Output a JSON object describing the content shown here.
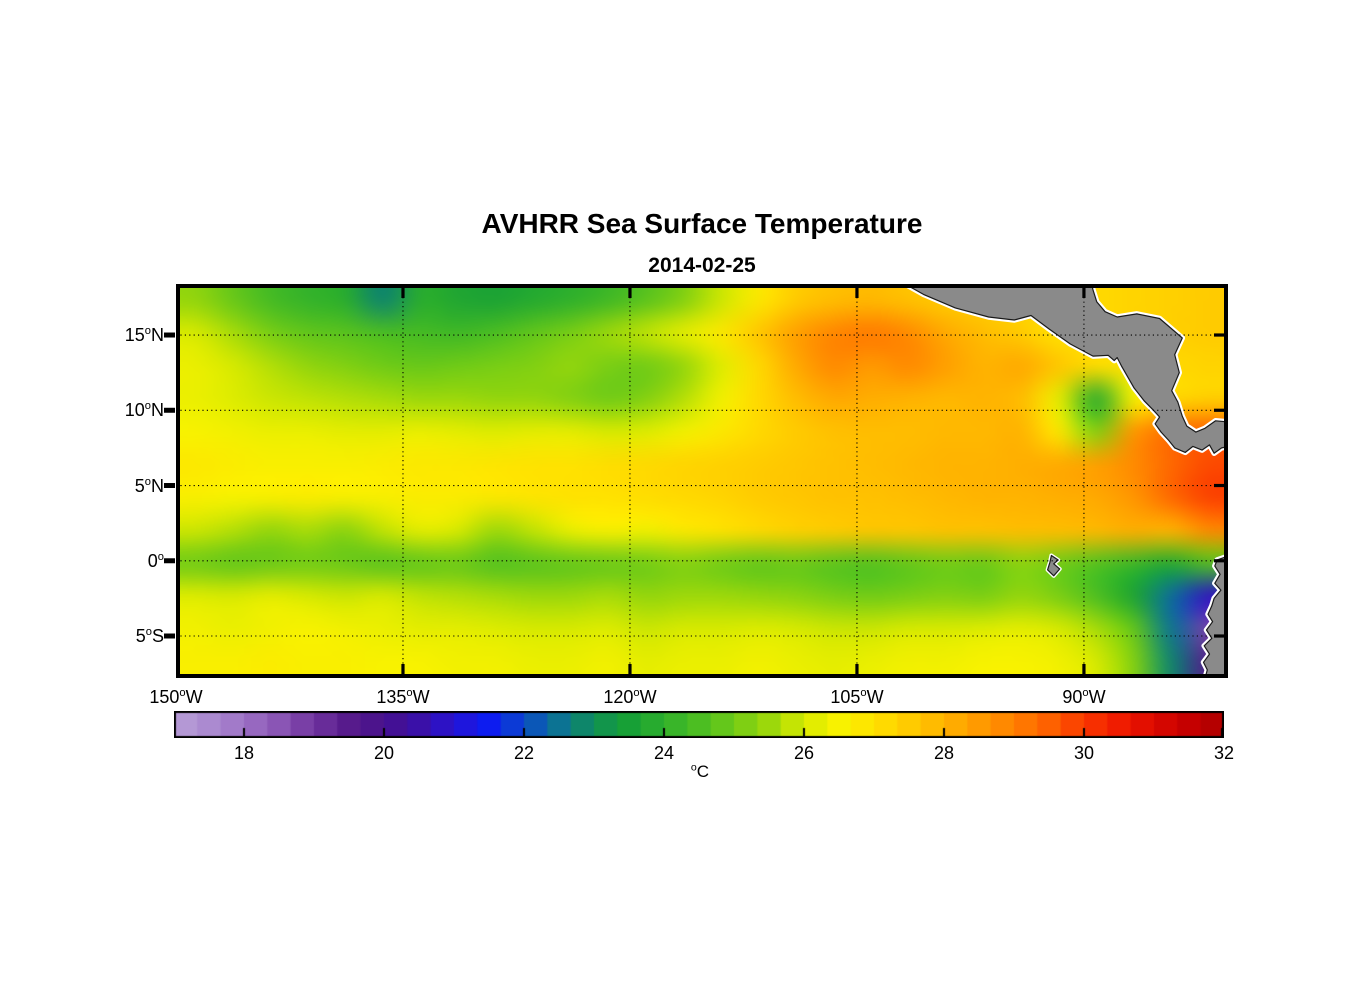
{
  "figure": {
    "title": "AVHRR Sea Surface Temperature",
    "subtitle": "2014-02-25"
  },
  "chart_data": {
    "type": "heatmap",
    "title": "AVHRR Sea Surface Temperature",
    "subtitle": "2014-02-25",
    "lon_range": [
      -150,
      -80.48
    ],
    "lat_range": [
      -7.79,
      18.39
    ],
    "grid_on": true,
    "x_ticks": [
      {
        "lon": -150,
        "label": "150°W"
      },
      {
        "lon": -135,
        "label": "135°W"
      },
      {
        "lon": -120,
        "label": "120°W"
      },
      {
        "lon": -105,
        "label": "105°W"
      },
      {
        "lon": -90,
        "label": "90°W"
      }
    ],
    "y_ticks": [
      {
        "lat": 15,
        "label": "15°N"
      },
      {
        "lat": 10,
        "label": "10°N"
      },
      {
        "lat": 5,
        "label": "5°N"
      },
      {
        "lat": 0,
        "label": "0°"
      },
      {
        "lat": -5,
        "label": "5°S"
      }
    ],
    "colorbar": {
      "label": "°C",
      "ticks": [
        18,
        20,
        22,
        24,
        26,
        28,
        30,
        32
      ],
      "range": [
        17,
        32
      ],
      "segments": 45,
      "orientation": "horizontal"
    },
    "colormap": {
      "start": 17,
      "step": 0.5,
      "colors": [
        "#b89fd8",
        "#ab8ad0",
        "#9d72c6",
        "#8a55b5",
        "#71349f",
        "#571b8c",
        "#47108c",
        "#3a10a8",
        "#2613d4",
        "#0d1cf0",
        "#0b49c9",
        "#0c7393",
        "#0f8f55",
        "#17a036",
        "#2fb02c",
        "#4cbe22",
        "#70cb17",
        "#9cd80b",
        "#d8ea00",
        "#f8f200",
        "#ffe200",
        "#ffcb00",
        "#ffb300",
        "#ff9a00",
        "#ff8000",
        "#fe6100",
        "#fa3900",
        "#f01c00",
        "#dc0900",
        "#c50000",
        "#ad0000"
      ]
    },
    "land_color": "#8a8a8a",
    "coast_halo_color": "#ffffff",
    "coast_line_color": "#1a1a1a",
    "frame_color": "#000000",
    "sst_grid": {
      "units": "°C",
      "cols": 28,
      "rows": 12,
      "lon_min": -150,
      "lon_max": -80.48,
      "lat_max": 18.39,
      "lat_min": -7.79,
      "values": [
        [
          25.4,
          24.9,
          24.4,
          24.1,
          23.9,
          22.8,
          23.9,
          23.7,
          23.6,
          23.8,
          24.0,
          24.3,
          24.7,
          25.2,
          25.9,
          26.8,
          27.5,
          27.8,
          27.9,
          27.7,
          27.5,
          27.4,
          27.3,
          27.2,
          27.2,
          27.3,
          27.4,
          27.5
        ],
        [
          26.0,
          25.6,
          25.1,
          24.8,
          24.7,
          24.5,
          24.4,
          24.3,
          24.5,
          24.8,
          25.1,
          25.5,
          25.8,
          26.2,
          26.8,
          27.6,
          28.4,
          28.9,
          29.1,
          28.8,
          28.2,
          27.8,
          27.5,
          27.0,
          27.2,
          27.3,
          27.4,
          27.5
        ],
        [
          26.3,
          26.0,
          25.7,
          25.4,
          25.2,
          25.0,
          24.9,
          25.0,
          25.1,
          25.2,
          25.4,
          25.1,
          25.0,
          25.4,
          26.1,
          27.2,
          28.2,
          28.8,
          28.5,
          28.8,
          28.4,
          28.0,
          28.2,
          27.6,
          27.1,
          27.0,
          27.2,
          27.3
        ],
        [
          26.3,
          26.1,
          25.9,
          25.8,
          25.7,
          25.6,
          25.5,
          25.5,
          25.4,
          25.4,
          25.2,
          25.0,
          25.2,
          25.7,
          26.4,
          27.2,
          27.8,
          28.2,
          28.1,
          28.0,
          27.9,
          28.0,
          27.8,
          26.2,
          23.8,
          26.5,
          27.2,
          27.4
        ],
        [
          26.5,
          26.4,
          26.3,
          26.3,
          26.2,
          26.2,
          26.3,
          26.2,
          26.1,
          26.2,
          26.2,
          26.0,
          26.1,
          26.4,
          26.8,
          27.2,
          27.5,
          27.7,
          27.8,
          27.8,
          27.9,
          27.9,
          28.0,
          26.8,
          25.2,
          28.6,
          29.3,
          29.5
        ],
        [
          26.8,
          26.7,
          26.6,
          26.6,
          26.6,
          26.7,
          26.8,
          26.8,
          26.9,
          27.0,
          27.0,
          27.1,
          27.2,
          27.3,
          27.4,
          27.5,
          27.6,
          27.7,
          27.8,
          27.9,
          28.0,
          28.0,
          28.1,
          28.2,
          28.4,
          28.8,
          29.4,
          29.8
        ],
        [
          26.6,
          26.5,
          26.6,
          26.7,
          26.6,
          26.6,
          26.7,
          26.7,
          26.8,
          26.9,
          27.0,
          27.0,
          27.1,
          27.2,
          27.3,
          27.5,
          27.6,
          27.7,
          27.7,
          27.8,
          27.9,
          28.0,
          28.0,
          28.1,
          28.2,
          28.6,
          29.4,
          29.9
        ],
        [
          25.9,
          25.7,
          25.4,
          25.6,
          25.3,
          25.8,
          26.2,
          26.0,
          25.5,
          25.8,
          26.3,
          26.6,
          26.4,
          26.8,
          27.0,
          27.2,
          27.4,
          27.5,
          27.6,
          27.6,
          27.7,
          27.7,
          27.8,
          27.8,
          27.9,
          28.1,
          28.0,
          28.8
        ],
        [
          25.0,
          24.8,
          24.9,
          25.0,
          24.9,
          24.7,
          24.8,
          24.9,
          24.6,
          24.7,
          24.8,
          24.9,
          25.0,
          25.2,
          25.0,
          24.8,
          24.9,
          24.7,
          24.6,
          24.8,
          25.0,
          24.9,
          25.3,
          25.0,
          24.6,
          24.2,
          23.8,
          24.6
        ],
        [
          26.1,
          26.0,
          26.2,
          26.0,
          25.9,
          26.0,
          25.8,
          25.7,
          25.6,
          25.5,
          25.5,
          25.6,
          25.4,
          25.5,
          25.5,
          25.4,
          25.3,
          25.1,
          25.0,
          25.1,
          25.2,
          25.1,
          25.4,
          25.1,
          24.5,
          23.6,
          22.4,
          20.8
        ],
        [
          26.4,
          26.3,
          26.4,
          26.5,
          26.4,
          26.3,
          26.2,
          26.2,
          26.1,
          26.0,
          26.0,
          26.1,
          25.9,
          26.0,
          26.0,
          26.1,
          26.0,
          25.9,
          25.9,
          26.0,
          26.0,
          26.1,
          26.2,
          26.0,
          25.6,
          24.8,
          22.5,
          18.8
        ],
        [
          26.6,
          26.6,
          26.7,
          26.6,
          26.6,
          26.5,
          26.5,
          26.4,
          26.4,
          26.3,
          26.3,
          26.4,
          26.2,
          26.3,
          26.3,
          26.4,
          26.3,
          26.2,
          26.3,
          26.4,
          26.4,
          26.5,
          26.5,
          26.4,
          26.0,
          25.2,
          22.8,
          19.5
        ]
      ]
    },
    "land": [
      {
        "name": "central-america",
        "points": [
          [
            -102.2,
            18.6
          ],
          [
            -100.6,
            17.7
          ],
          [
            -98.5,
            16.8
          ],
          [
            -96.3,
            16.2
          ],
          [
            -94.6,
            16.0
          ],
          [
            -93.5,
            16.3
          ],
          [
            -92.3,
            15.4
          ],
          [
            -90.9,
            14.4
          ],
          [
            -89.4,
            13.6
          ],
          [
            -88.4,
            13.65
          ],
          [
            -88.0,
            13.3
          ],
          [
            -87.8,
            13.5
          ],
          [
            -87.5,
            12.9
          ],
          [
            -86.7,
            11.5
          ],
          [
            -86.0,
            10.6
          ],
          [
            -85.4,
            10.0
          ],
          [
            -85.0,
            9.55
          ],
          [
            -85.3,
            9.1
          ],
          [
            -84.9,
            8.55
          ],
          [
            -84.4,
            8.0
          ],
          [
            -84.0,
            7.5
          ],
          [
            -83.3,
            7.2
          ],
          [
            -82.8,
            7.6
          ],
          [
            -82.2,
            7.35
          ],
          [
            -81.7,
            7.7
          ],
          [
            -81.4,
            7.15
          ],
          [
            -80.9,
            7.5
          ],
          [
            -80.2,
            7.64
          ],
          [
            -80.2,
            9.2
          ],
          [
            -81.3,
            9.3
          ],
          [
            -82.0,
            8.8
          ],
          [
            -82.6,
            8.55
          ],
          [
            -83.2,
            8.95
          ],
          [
            -83.5,
            9.6
          ],
          [
            -83.8,
            10.55
          ],
          [
            -84.2,
            11.3
          ],
          [
            -83.7,
            12.5
          ],
          [
            -84.0,
            13.7
          ],
          [
            -83.5,
            14.8
          ],
          [
            -85.0,
            16.1
          ],
          [
            -86.5,
            16.4
          ],
          [
            -87.8,
            16.2
          ],
          [
            -88.6,
            16.55
          ],
          [
            -89.15,
            17.2
          ],
          [
            -89.4,
            18.0
          ],
          [
            -89.55,
            18.6
          ]
        ]
      },
      {
        "name": "south-america",
        "points": [
          [
            -80.2,
            0.4
          ],
          [
            -81.2,
            0.05
          ],
          [
            -81.35,
            -0.35
          ],
          [
            -81.0,
            -0.9
          ],
          [
            -81.35,
            -1.5
          ],
          [
            -80.95,
            -1.95
          ],
          [
            -81.4,
            -2.5
          ],
          [
            -81.55,
            -3.0
          ],
          [
            -81.8,
            -3.55
          ],
          [
            -81.5,
            -4.05
          ],
          [
            -81.9,
            -4.6
          ],
          [
            -81.55,
            -5.15
          ],
          [
            -82.05,
            -5.65
          ],
          [
            -81.7,
            -6.2
          ],
          [
            -82.1,
            -6.75
          ],
          [
            -81.85,
            -7.25
          ],
          [
            -82.05,
            -8.0
          ],
          [
            -80.2,
            -8.0
          ]
        ]
      },
      {
        "name": "galapagos-islands",
        "points": [
          [
            -92.15,
            0.35
          ],
          [
            -91.7,
            0.05
          ],
          [
            -92.0,
            -0.2
          ],
          [
            -91.6,
            -0.55
          ],
          [
            -92.0,
            -1.0
          ],
          [
            -92.4,
            -0.6
          ],
          [
            -92.25,
            -0.1
          ]
        ]
      }
    ]
  }
}
